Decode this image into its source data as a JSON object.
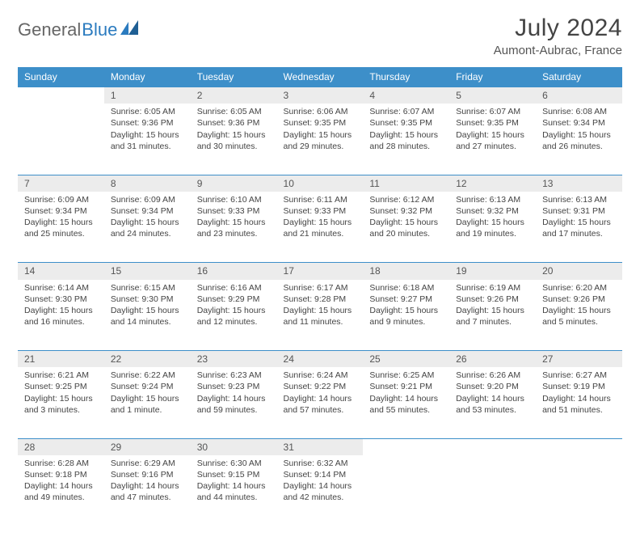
{
  "logo": {
    "text1": "General",
    "text2": "Blue"
  },
  "title": "July 2024",
  "location": "Aumont-Aubrac, France",
  "colors": {
    "header_bg": "#3d8fc9",
    "header_text": "#ffffff",
    "daynum_bg": "#ececec",
    "border": "#3d8fc9",
    "text": "#444444",
    "logo_gray": "#666666",
    "logo_blue": "#2b7bbf"
  },
  "weekdays": [
    "Sunday",
    "Monday",
    "Tuesday",
    "Wednesday",
    "Thursday",
    "Friday",
    "Saturday"
  ],
  "weeks": [
    {
      "nums": [
        "",
        "1",
        "2",
        "3",
        "4",
        "5",
        "6"
      ],
      "cells": [
        "",
        "Sunrise: 6:05 AM\nSunset: 9:36 PM\nDaylight: 15 hours and 31 minutes.",
        "Sunrise: 6:05 AM\nSunset: 9:36 PM\nDaylight: 15 hours and 30 minutes.",
        "Sunrise: 6:06 AM\nSunset: 9:35 PM\nDaylight: 15 hours and 29 minutes.",
        "Sunrise: 6:07 AM\nSunset: 9:35 PM\nDaylight: 15 hours and 28 minutes.",
        "Sunrise: 6:07 AM\nSunset: 9:35 PM\nDaylight: 15 hours and 27 minutes.",
        "Sunrise: 6:08 AM\nSunset: 9:34 PM\nDaylight: 15 hours and 26 minutes."
      ]
    },
    {
      "nums": [
        "7",
        "8",
        "9",
        "10",
        "11",
        "12",
        "13"
      ],
      "cells": [
        "Sunrise: 6:09 AM\nSunset: 9:34 PM\nDaylight: 15 hours and 25 minutes.",
        "Sunrise: 6:09 AM\nSunset: 9:34 PM\nDaylight: 15 hours and 24 minutes.",
        "Sunrise: 6:10 AM\nSunset: 9:33 PM\nDaylight: 15 hours and 23 minutes.",
        "Sunrise: 6:11 AM\nSunset: 9:33 PM\nDaylight: 15 hours and 21 minutes.",
        "Sunrise: 6:12 AM\nSunset: 9:32 PM\nDaylight: 15 hours and 20 minutes.",
        "Sunrise: 6:13 AM\nSunset: 9:32 PM\nDaylight: 15 hours and 19 minutes.",
        "Sunrise: 6:13 AM\nSunset: 9:31 PM\nDaylight: 15 hours and 17 minutes."
      ]
    },
    {
      "nums": [
        "14",
        "15",
        "16",
        "17",
        "18",
        "19",
        "20"
      ],
      "cells": [
        "Sunrise: 6:14 AM\nSunset: 9:30 PM\nDaylight: 15 hours and 16 minutes.",
        "Sunrise: 6:15 AM\nSunset: 9:30 PM\nDaylight: 15 hours and 14 minutes.",
        "Sunrise: 6:16 AM\nSunset: 9:29 PM\nDaylight: 15 hours and 12 minutes.",
        "Sunrise: 6:17 AM\nSunset: 9:28 PM\nDaylight: 15 hours and 11 minutes.",
        "Sunrise: 6:18 AM\nSunset: 9:27 PM\nDaylight: 15 hours and 9 minutes.",
        "Sunrise: 6:19 AM\nSunset: 9:26 PM\nDaylight: 15 hours and 7 minutes.",
        "Sunrise: 6:20 AM\nSunset: 9:26 PM\nDaylight: 15 hours and 5 minutes."
      ]
    },
    {
      "nums": [
        "21",
        "22",
        "23",
        "24",
        "25",
        "26",
        "27"
      ],
      "cells": [
        "Sunrise: 6:21 AM\nSunset: 9:25 PM\nDaylight: 15 hours and 3 minutes.",
        "Sunrise: 6:22 AM\nSunset: 9:24 PM\nDaylight: 15 hours and 1 minute.",
        "Sunrise: 6:23 AM\nSunset: 9:23 PM\nDaylight: 14 hours and 59 minutes.",
        "Sunrise: 6:24 AM\nSunset: 9:22 PM\nDaylight: 14 hours and 57 minutes.",
        "Sunrise: 6:25 AM\nSunset: 9:21 PM\nDaylight: 14 hours and 55 minutes.",
        "Sunrise: 6:26 AM\nSunset: 9:20 PM\nDaylight: 14 hours and 53 minutes.",
        "Sunrise: 6:27 AM\nSunset: 9:19 PM\nDaylight: 14 hours and 51 minutes."
      ]
    },
    {
      "nums": [
        "28",
        "29",
        "30",
        "31",
        "",
        "",
        ""
      ],
      "cells": [
        "Sunrise: 6:28 AM\nSunset: 9:18 PM\nDaylight: 14 hours and 49 minutes.",
        "Sunrise: 6:29 AM\nSunset: 9:16 PM\nDaylight: 14 hours and 47 minutes.",
        "Sunrise: 6:30 AM\nSunset: 9:15 PM\nDaylight: 14 hours and 44 minutes.",
        "Sunrise: 6:32 AM\nSunset: 9:14 PM\nDaylight: 14 hours and 42 minutes.",
        "",
        "",
        ""
      ]
    }
  ]
}
